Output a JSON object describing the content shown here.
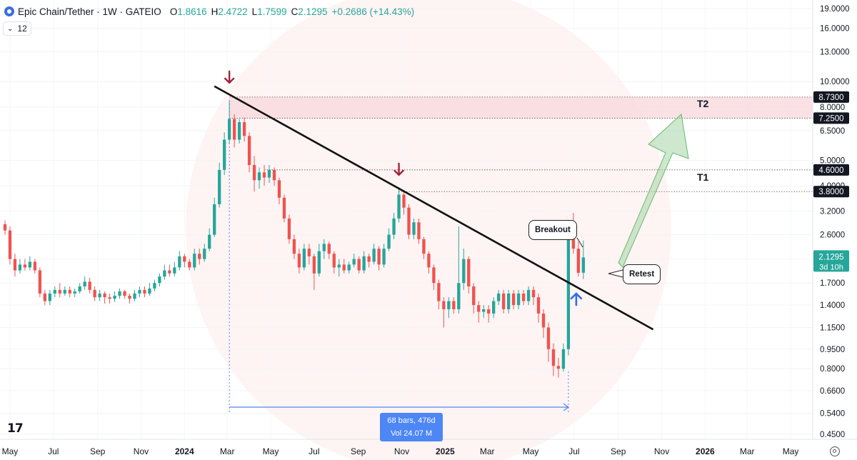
{
  "header": {
    "symbol": "Epic Chain/Tether · 1W · GATEIO",
    "open_label": "O",
    "open": "1.8616",
    "high_label": "H",
    "high": "2.4722",
    "low_label": "L",
    "low": "1.7599",
    "close_label": "C",
    "close": "2.1295",
    "change": "+0.2686 (+14.43%)"
  },
  "indicator_badge": "12",
  "colors": {
    "up": "#26a69a",
    "down": "#ef5350",
    "measure": "#4d86f5",
    "zone": "#f7d9dd"
  },
  "price_axis": {
    "scale": "log",
    "ticks": [
      "19.0000",
      "16.0000",
      "13.0000",
      "10.0000",
      "8.0000",
      "6.5000",
      "5.0000",
      "4.0000",
      "3.2000",
      "2.6000",
      "2.1000",
      "1.7000",
      "1.4000",
      "1.1500",
      "0.9500",
      "0.8000",
      "0.6600",
      "0.5400",
      "0.4500"
    ],
    "current_price": "2.1295",
    "countdown": "3d 10h",
    "levels": [
      "8.7300",
      "7.2500",
      "4.6000",
      "3.8000"
    ]
  },
  "time_axis": {
    "ticks": [
      "May",
      "Jul",
      "Sep",
      "Nov",
      "2024",
      "Mar",
      "May",
      "Jul",
      "Sep",
      "Nov",
      "2025",
      "Mar",
      "May",
      "Jul",
      "Sep",
      "Nov",
      "2026",
      "Mar",
      "May"
    ]
  },
  "annotations": {
    "t1": "T1",
    "t2": "T2",
    "breakout": "Breakout",
    "retest": "Retest",
    "measure_line1": "68 bars, 476d",
    "measure_line2": "Vol 24.07 M"
  },
  "chart_data": {
    "type": "candlestick",
    "title": "Epic Chain/Tether · 1W · GATEIO",
    "y_scale": "log",
    "ylim": [
      0.43,
      20.5
    ],
    "x_range": [
      "2023-04-17",
      "2026-06-01"
    ],
    "candles": [
      [
        "2023-04-24",
        2.85,
        2.7,
        2.95,
        2.6
      ],
      [
        "2023-05-01",
        2.7,
        2.1,
        2.8,
        2.0
      ],
      [
        "2023-05-08",
        2.1,
        1.9,
        2.2,
        1.8
      ],
      [
        "2023-05-15",
        1.9,
        2.0,
        2.1,
        1.85
      ],
      [
        "2023-05-22",
        2.0,
        1.95,
        2.1,
        1.9
      ],
      [
        "2023-05-29",
        1.95,
        2.05,
        2.15,
        1.9
      ],
      [
        "2023-06-05",
        2.05,
        1.9,
        2.1,
        1.85
      ],
      [
        "2023-06-12",
        1.9,
        1.55,
        1.95,
        1.5
      ],
      [
        "2023-06-19",
        1.55,
        1.45,
        1.6,
        1.4
      ],
      [
        "2023-06-26",
        1.45,
        1.55,
        1.6,
        1.4
      ],
      [
        "2023-07-03",
        1.55,
        1.6,
        1.65,
        1.5
      ],
      [
        "2023-07-10",
        1.6,
        1.55,
        1.7,
        1.5
      ],
      [
        "2023-07-17",
        1.55,
        1.6,
        1.65,
        1.52
      ],
      [
        "2023-07-24",
        1.6,
        1.55,
        1.65,
        1.5
      ],
      [
        "2023-07-31",
        1.55,
        1.58,
        1.62,
        1.5
      ],
      [
        "2023-08-07",
        1.58,
        1.65,
        1.7,
        1.55
      ],
      [
        "2023-08-14",
        1.65,
        1.72,
        1.8,
        1.6
      ],
      [
        "2023-08-21",
        1.72,
        1.6,
        1.78,
        1.55
      ],
      [
        "2023-08-28",
        1.6,
        1.5,
        1.65,
        1.45
      ],
      [
        "2023-09-04",
        1.5,
        1.55,
        1.6,
        1.45
      ],
      [
        "2023-09-11",
        1.55,
        1.5,
        1.58,
        1.42
      ],
      [
        "2023-09-18",
        1.5,
        1.48,
        1.55,
        1.42
      ],
      [
        "2023-09-25",
        1.48,
        1.52,
        1.58,
        1.44
      ],
      [
        "2023-10-02",
        1.52,
        1.58,
        1.62,
        1.48
      ],
      [
        "2023-10-09",
        1.58,
        1.52,
        1.6,
        1.48
      ],
      [
        "2023-10-16",
        1.52,
        1.48,
        1.55,
        1.42
      ],
      [
        "2023-10-23",
        1.48,
        1.55,
        1.6,
        1.45
      ],
      [
        "2023-10-30",
        1.55,
        1.6,
        1.65,
        1.5
      ],
      [
        "2023-11-06",
        1.6,
        1.55,
        1.65,
        1.5
      ],
      [
        "2023-11-13",
        1.55,
        1.62,
        1.7,
        1.52
      ],
      [
        "2023-11-20",
        1.62,
        1.7,
        1.75,
        1.58
      ],
      [
        "2023-11-27",
        1.7,
        1.8,
        1.85,
        1.65
      ],
      [
        "2023-12-04",
        1.8,
        1.9,
        2.0,
        1.75
      ],
      [
        "2023-12-11",
        1.9,
        1.85,
        2.0,
        1.8
      ],
      [
        "2023-12-18",
        1.85,
        1.95,
        2.05,
        1.8
      ],
      [
        "2023-12-25",
        1.95,
        2.15,
        2.25,
        1.9
      ],
      [
        "2024-01-01",
        2.15,
        2.05,
        2.2,
        1.95
      ],
      [
        "2024-01-08",
        2.05,
        1.95,
        2.1,
        1.9
      ],
      [
        "2024-01-15",
        1.95,
        2.2,
        2.3,
        1.9
      ],
      [
        "2024-01-22",
        2.2,
        2.1,
        2.3,
        2.0
      ],
      [
        "2024-01-29",
        2.1,
        2.3,
        2.4,
        2.05
      ],
      [
        "2024-02-05",
        2.3,
        2.6,
        2.75,
        2.25
      ],
      [
        "2024-02-12",
        2.6,
        3.4,
        3.6,
        2.55
      ],
      [
        "2024-02-19",
        3.4,
        4.6,
        4.9,
        3.3
      ],
      [
        "2024-02-26",
        4.6,
        6.0,
        6.4,
        4.4
      ],
      [
        "2024-03-04",
        6.0,
        7.2,
        8.4,
        5.8
      ],
      [
        "2024-03-11",
        7.2,
        6.0,
        7.5,
        5.6
      ],
      [
        "2024-03-18",
        6.0,
        7.0,
        7.2,
        5.8
      ],
      [
        "2024-03-25",
        7.0,
        6.2,
        7.3,
        5.9
      ],
      [
        "2024-04-01",
        6.2,
        4.8,
        6.4,
        4.5
      ],
      [
        "2024-04-08",
        4.8,
        4.2,
        5.2,
        3.8
      ],
      [
        "2024-04-15",
        4.2,
        4.5,
        4.7,
        3.9
      ],
      [
        "2024-04-22",
        4.5,
        4.3,
        4.8,
        4.0
      ],
      [
        "2024-04-29",
        4.3,
        4.6,
        4.8,
        4.1
      ],
      [
        "2024-05-06",
        4.6,
        4.2,
        4.7,
        4.0
      ],
      [
        "2024-05-13",
        4.2,
        3.6,
        4.3,
        3.4
      ],
      [
        "2024-05-20",
        3.6,
        3.0,
        3.7,
        2.9
      ],
      [
        "2024-05-27",
        3.0,
        2.5,
        3.1,
        2.4
      ],
      [
        "2024-06-03",
        2.5,
        2.2,
        2.6,
        2.1
      ],
      [
        "2024-06-10",
        2.2,
        1.95,
        2.3,
        1.85
      ],
      [
        "2024-06-17",
        1.95,
        2.3,
        2.4,
        1.9
      ],
      [
        "2024-06-24",
        2.3,
        2.15,
        2.4,
        2.0
      ],
      [
        "2024-07-01",
        2.15,
        1.85,
        2.2,
        1.6
      ],
      [
        "2024-07-08",
        1.85,
        2.25,
        2.4,
        1.8
      ],
      [
        "2024-07-15",
        2.25,
        2.4,
        2.5,
        2.1
      ],
      [
        "2024-07-22",
        2.4,
        2.2,
        2.45,
        2.1
      ],
      [
        "2024-07-29",
        2.2,
        1.95,
        2.25,
        1.85
      ],
      [
        "2024-08-05",
        1.95,
        2.0,
        2.1,
        1.8
      ],
      [
        "2024-08-12",
        2.0,
        1.9,
        2.1,
        1.85
      ],
      [
        "2024-08-19",
        1.9,
        2.0,
        2.05,
        1.85
      ],
      [
        "2024-08-26",
        2.0,
        2.1,
        2.2,
        1.95
      ],
      [
        "2024-09-02",
        2.1,
        1.9,
        2.15,
        1.85
      ],
      [
        "2024-09-09",
        1.9,
        2.15,
        2.25,
        1.85
      ],
      [
        "2024-09-16",
        2.15,
        2.05,
        2.2,
        1.95
      ],
      [
        "2024-09-23",
        2.05,
        2.3,
        2.4,
        2.0
      ],
      [
        "2024-09-30",
        2.3,
        2.0,
        2.35,
        1.9
      ],
      [
        "2024-10-07",
        2.0,
        2.3,
        2.4,
        1.95
      ],
      [
        "2024-10-14",
        2.3,
        2.6,
        2.75,
        2.25
      ],
      [
        "2024-10-21",
        2.6,
        3.0,
        3.15,
        2.5
      ],
      [
        "2024-10-28",
        3.0,
        3.7,
        3.95,
        2.9
      ],
      [
        "2024-11-04",
        3.7,
        3.3,
        3.85,
        3.1
      ],
      [
        "2024-11-11",
        3.3,
        2.6,
        3.4,
        2.5
      ],
      [
        "2024-11-18",
        2.6,
        2.9,
        3.0,
        2.5
      ],
      [
        "2024-11-25",
        2.9,
        2.5,
        3.0,
        2.4
      ],
      [
        "2024-12-02",
        2.5,
        2.2,
        2.55,
        2.1
      ],
      [
        "2024-12-09",
        2.2,
        1.95,
        2.25,
        1.85
      ],
      [
        "2024-12-16",
        1.95,
        1.7,
        2.0,
        1.6
      ],
      [
        "2024-12-23",
        1.7,
        1.45,
        1.75,
        1.35
      ],
      [
        "2024-12-30",
        1.45,
        1.35,
        1.5,
        1.15
      ],
      [
        "2025-01-06",
        1.35,
        1.45,
        1.5,
        1.25
      ],
      [
        "2025-01-13",
        1.45,
        1.35,
        1.5,
        1.3
      ],
      [
        "2025-01-20",
        1.35,
        1.7,
        2.8,
        1.3
      ],
      [
        "2025-01-27",
        1.7,
        2.1,
        2.3,
        1.6
      ],
      [
        "2025-02-03",
        2.1,
        1.65,
        2.15,
        1.55
      ],
      [
        "2025-02-10",
        1.65,
        1.4,
        1.7,
        1.3
      ],
      [
        "2025-02-17",
        1.4,
        1.32,
        1.45,
        1.2
      ],
      [
        "2025-02-24",
        1.32,
        1.35,
        1.4,
        1.25
      ],
      [
        "2025-03-03",
        1.35,
        1.3,
        1.4,
        1.2
      ],
      [
        "2025-03-10",
        1.3,
        1.45,
        1.5,
        1.25
      ],
      [
        "2025-03-17",
        1.45,
        1.55,
        1.6,
        1.4
      ],
      [
        "2025-03-24",
        1.55,
        1.35,
        1.6,
        1.3
      ],
      [
        "2025-03-31",
        1.35,
        1.55,
        1.6,
        1.3
      ],
      [
        "2025-04-07",
        1.55,
        1.4,
        1.6,
        1.35
      ],
      [
        "2025-04-14",
        1.4,
        1.55,
        1.6,
        1.35
      ],
      [
        "2025-04-21",
        1.55,
        1.45,
        1.6,
        1.4
      ],
      [
        "2025-04-28",
        1.45,
        1.6,
        1.65,
        1.4
      ],
      [
        "2025-05-05",
        1.6,
        1.5,
        1.65,
        1.4
      ],
      [
        "2025-05-12",
        1.5,
        1.3,
        1.55,
        1.2
      ],
      [
        "2025-05-19",
        1.3,
        1.15,
        1.35,
        1.05
      ],
      [
        "2025-05-26",
        1.15,
        0.95,
        1.2,
        0.85
      ],
      [
        "2025-06-02",
        0.95,
        0.82,
        1.0,
        0.75
      ],
      [
        "2025-06-09",
        0.82,
        0.8,
        0.88,
        0.74
      ],
      [
        "2025-06-16",
        0.8,
        0.95,
        1.0,
        0.78
      ],
      [
        "2025-06-23",
        0.95,
        2.6,
        2.8,
        0.9
      ],
      [
        "2025-06-30",
        2.6,
        2.3,
        3.15,
        2.2
      ],
      [
        "2025-07-07",
        2.3,
        1.86,
        2.45,
        1.8
      ],
      [
        "2025-07-14",
        1.8616,
        2.1295,
        2.4722,
        1.7599
      ]
    ],
    "trendline": {
      "from": [
        "2024-02-12",
        9.6
      ],
      "to": [
        "2025-10-20",
        1.13
      ]
    },
    "levels": [
      {
        "label": "8.7300",
        "value": 8.73
      },
      {
        "label": "7.2500",
        "value": 7.25
      },
      {
        "label": "4.6000",
        "value": 4.6
      },
      {
        "label": "3.8000",
        "value": 3.8
      }
    ],
    "targets": [
      {
        "name": "T2",
        "zone": [
          7.25,
          8.73
        ]
      },
      {
        "name": "T1",
        "level": 3.8
      }
    ],
    "measure": {
      "from": "2024-03-04",
      "to": "2025-06-23",
      "bars": 68,
      "days": 476,
      "volume": "24.07 M"
    }
  }
}
